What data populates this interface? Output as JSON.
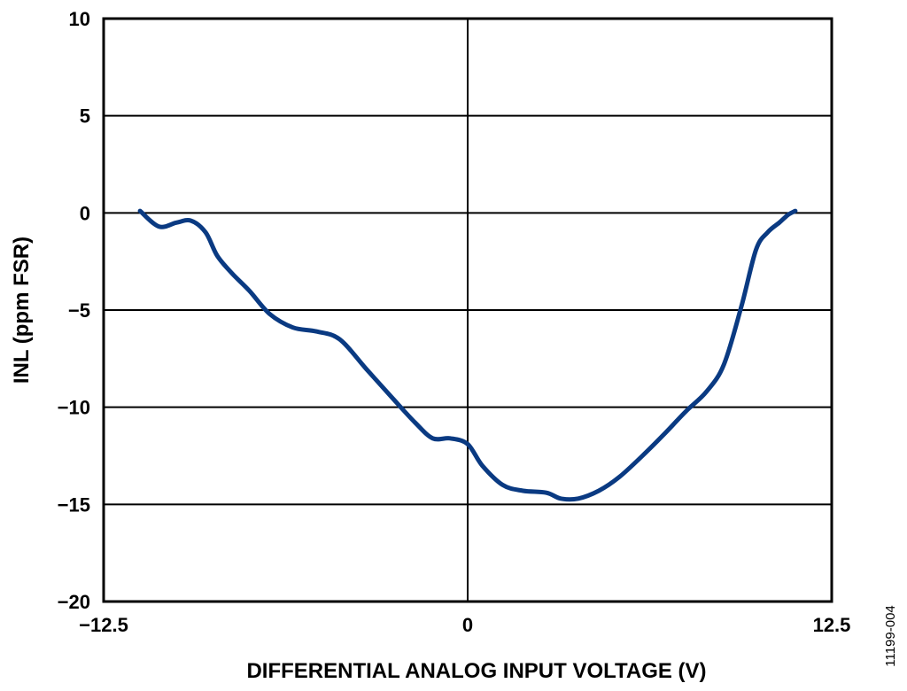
{
  "chart_data": {
    "type": "line",
    "title": "",
    "xlabel": "DIFFERENTIAL ANALOG INPUT VOLTAGE (V)",
    "ylabel": "INL (ppm FSR)",
    "xlim": [
      -12.5,
      12.5
    ],
    "ylim": [
      -20,
      10
    ],
    "x_ticks": [
      -12.5,
      0,
      12.5
    ],
    "x_tick_labels": [
      "−12.5",
      "0",
      "12.5"
    ],
    "y_ticks": [
      10,
      5,
      0,
      -5,
      -10,
      -15,
      -20
    ],
    "y_tick_labels": [
      "10",
      "5",
      "0",
      "−5",
      "−10",
      "−15",
      "−20"
    ],
    "grid": true,
    "line_color": "#0a3a82",
    "series": [
      {
        "x": [
          -11.25,
          -10.6,
          -10.0,
          -9.5,
          -9.0,
          -8.6,
          -8.1,
          -7.5,
          -6.8,
          -6.0,
          -5.2,
          -4.4,
          -3.5,
          -2.6,
          -1.8,
          -1.2,
          -0.6,
          0.0,
          0.5,
          1.2,
          1.9,
          2.7,
          3.2,
          3.8,
          4.5,
          5.2,
          6.0,
          6.8,
          7.5,
          8.2,
          8.8,
          9.4,
          9.9,
          10.3,
          10.7,
          11.0,
          11.25
        ],
        "y": [
          0.1,
          -0.7,
          -0.5,
          -0.4,
          -1.0,
          -2.2,
          -3.1,
          -4.0,
          -5.2,
          -5.9,
          -6.1,
          -6.5,
          -8.0,
          -9.5,
          -10.8,
          -11.6,
          -11.6,
          -11.9,
          -13.0,
          -14.0,
          -14.3,
          -14.4,
          -14.7,
          -14.7,
          -14.3,
          -13.6,
          -12.5,
          -11.3,
          -10.2,
          -9.2,
          -7.8,
          -4.8,
          -1.9,
          -1.0,
          -0.5,
          -0.1,
          0.1
        ]
      }
    ]
  },
  "figure_id": "11199-004"
}
